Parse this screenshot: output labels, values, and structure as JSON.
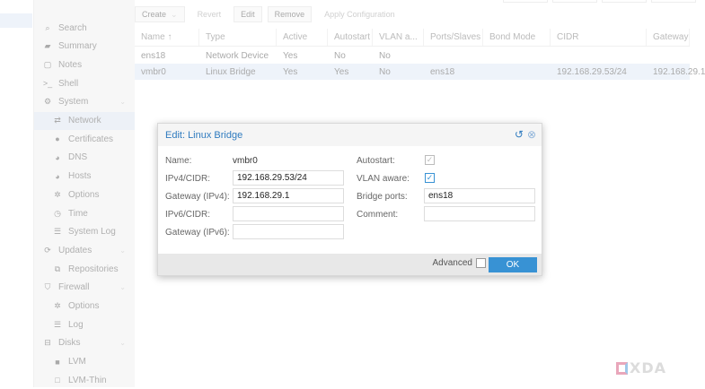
{
  "toolbar": {
    "create": "Create",
    "revert": "Revert",
    "edit": "Edit",
    "remove": "Remove",
    "apply": "Apply Configuration"
  },
  "sidebar": {
    "items": [
      {
        "label": "Search",
        "icon": "search-icon",
        "glyph": "⌕"
      },
      {
        "label": "Summary",
        "icon": "book-icon",
        "glyph": "▰"
      },
      {
        "label": "Notes",
        "icon": "notes-icon",
        "glyph": "▢"
      },
      {
        "label": "Shell",
        "icon": "terminal-icon",
        "glyph": ">_"
      },
      {
        "label": "System",
        "icon": "gears-icon",
        "glyph": "⚙",
        "chev": true
      },
      {
        "label": "Network",
        "icon": "exchange-icon",
        "glyph": "⇄",
        "sub": true,
        "sel": true
      },
      {
        "label": "Certificates",
        "icon": "certificate-icon",
        "glyph": "●",
        "sub": true
      },
      {
        "label": "DNS",
        "icon": "globe-icon",
        "glyph": "◕",
        "sub": true
      },
      {
        "label": "Hosts",
        "icon": "globe-icon",
        "glyph": "◕",
        "sub": true
      },
      {
        "label": "Options",
        "icon": "gear-icon",
        "glyph": "✲",
        "sub": true
      },
      {
        "label": "Time",
        "icon": "clock-icon",
        "glyph": "◷",
        "sub": true
      },
      {
        "label": "System Log",
        "icon": "list-icon",
        "glyph": "☰",
        "sub": true
      },
      {
        "label": "Updates",
        "icon": "refresh-icon",
        "glyph": "⟳",
        "chev": true
      },
      {
        "label": "Repositories",
        "icon": "files-icon",
        "glyph": "⧉",
        "sub": true
      },
      {
        "label": "Firewall",
        "icon": "shield-icon",
        "glyph": "⛉",
        "chev": true
      },
      {
        "label": "Options",
        "icon": "gear-icon",
        "glyph": "✲",
        "sub": true
      },
      {
        "label": "Log",
        "icon": "list-icon",
        "glyph": "☰",
        "sub": true
      },
      {
        "label": "Disks",
        "icon": "hdd-icon",
        "glyph": "⊟",
        "chev": true
      },
      {
        "label": "LVM",
        "icon": "square-icon",
        "glyph": "■",
        "sub": true
      },
      {
        "label": "LVM-Thin",
        "icon": "square-outline-icon",
        "glyph": "□",
        "sub": true
      }
    ]
  },
  "grid": {
    "columns": [
      "Name ↑",
      "Type",
      "Active",
      "Autostart",
      "VLAN a...",
      "Ports/Slaves",
      "Bond Mode",
      "CIDR",
      "Gateway"
    ],
    "rows": [
      [
        "ens18",
        "Network Device",
        "Yes",
        "No",
        "No",
        "",
        "",
        "",
        ""
      ],
      [
        "vmbr0",
        "Linux Bridge",
        "Yes",
        "Yes",
        "No",
        "ens18",
        "",
        "192.168.29.53/24",
        "192.168.29.1"
      ]
    ]
  },
  "dialog": {
    "title": "Edit: Linux Bridge",
    "name_label": "Name:",
    "name_value": "vmbr0",
    "ipv4_label": "IPv4/CIDR:",
    "ipv4_value": "192.168.29.53/24",
    "gw4_label": "Gateway (IPv4):",
    "gw4_value": "192.168.29.1",
    "ipv6_label": "IPv6/CIDR:",
    "ipv6_value": "",
    "gw6_label": "Gateway (IPv6):",
    "gw6_value": "",
    "autostart_label": "Autostart:",
    "autostart_checked": true,
    "vlan_label": "VLAN aware:",
    "vlan_checked": true,
    "ports_label": "Bridge ports:",
    "ports_value": "ens18",
    "comment_label": "Comment:",
    "comment_value": "",
    "advanced_label": "Advanced",
    "advanced_checked": false,
    "ok_label": "OK"
  },
  "logo": {
    "text": "XDA"
  },
  "colors": {
    "accent": "#3892d4",
    "title": "#2f7bbf"
  }
}
